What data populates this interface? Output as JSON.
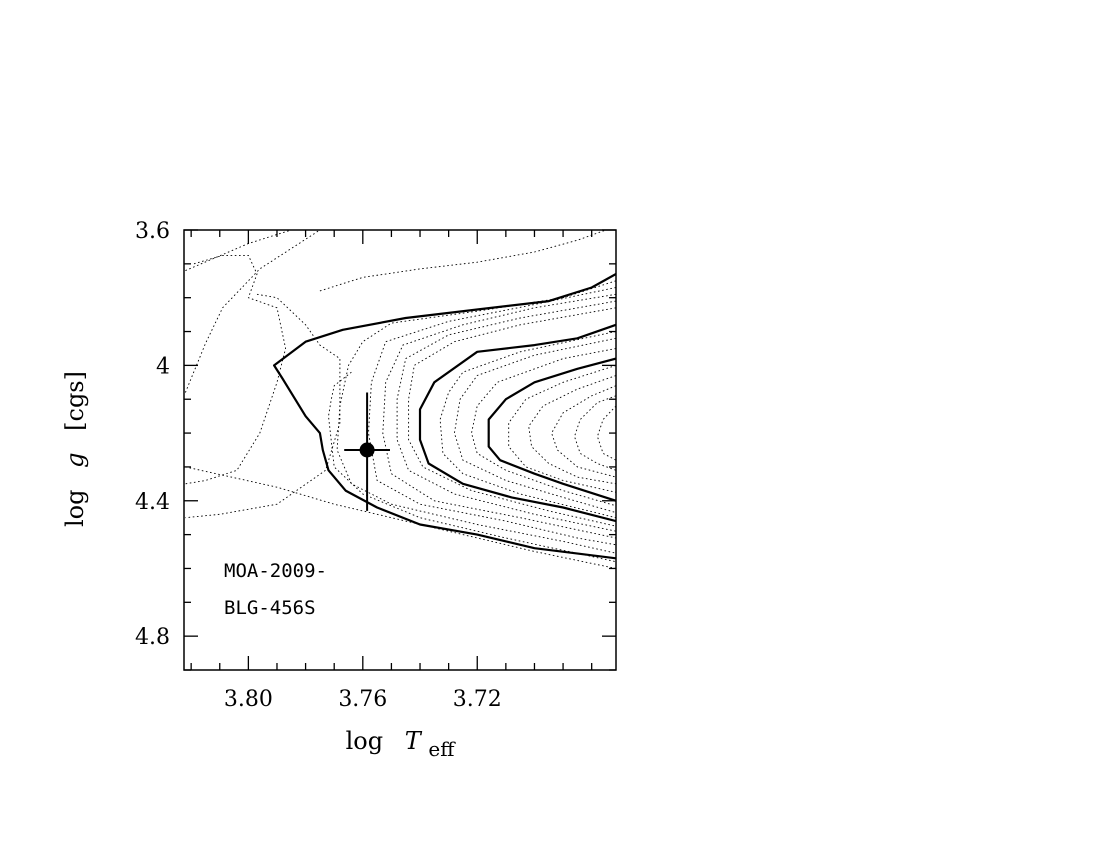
{
  "chart_data": {
    "type": "line",
    "title": "",
    "xlabel": {
      "prefix": "log",
      "symbol": "T",
      "subscript": "eff"
    },
    "ylabel": {
      "prefix": "log",
      "symbol": "g",
      "suffix": "[cgs]"
    },
    "xlim": [
      3.6715,
      3.8225
    ],
    "ylim": [
      4.9,
      3.6
    ],
    "x_reversed": true,
    "y_reversed": true,
    "x_major_ticks": [
      3.8,
      3.76,
      3.72
    ],
    "x_minor_step": 0.01,
    "x_tick_labels": [
      "3.80",
      "3.76",
      "3.72"
    ],
    "y_major_ticks": [
      3.6,
      4.0,
      4.4,
      4.8
    ],
    "y_minor_step": 0.1,
    "y_tick_labels": [
      "3.6",
      "4",
      "4.4",
      "4.8"
    ],
    "grid": false,
    "annotations": [
      "MOA-2009-",
      "BLG-456S"
    ],
    "data_point": {
      "label": "MOA-2009-BLG-456S",
      "x": 3.7585,
      "y": 4.25,
      "x_err": [
        3.7665,
        3.7505
      ],
      "y_err": [
        4.08,
        4.43
      ]
    },
    "series": [
      {
        "style": "dotted",
        "points": [
          [
            3.822,
            4.08
          ],
          [
            3.815,
            3.935
          ],
          [
            3.809,
            3.83
          ],
          [
            3.796,
            3.715
          ],
          [
            3.775,
            3.6
          ]
        ]
      },
      {
        "style": "dotted",
        "points": [
          [
            3.819,
            3.7
          ],
          [
            3.809,
            3.675
          ],
          [
            3.8,
            3.675
          ],
          [
            3.797,
            3.73
          ],
          [
            3.8,
            3.8
          ],
          [
            3.79,
            3.83
          ],
          [
            3.787,
            3.95
          ],
          [
            3.79,
            4.05
          ],
          [
            3.796,
            4.2
          ],
          [
            3.804,
            4.31
          ],
          [
            3.815,
            4.34
          ],
          [
            3.822,
            4.35
          ]
        ]
      },
      {
        "style": "dotted",
        "points": [
          [
            3.797,
            3.79
          ],
          [
            3.79,
            3.8
          ],
          [
            3.78,
            3.88
          ],
          [
            3.775,
            3.94
          ],
          [
            3.768,
            3.98
          ],
          [
            3.768,
            4.17
          ],
          [
            3.773,
            4.31
          ],
          [
            3.79,
            4.41
          ],
          [
            3.81,
            4.44
          ],
          [
            3.822,
            4.45
          ]
        ]
      },
      {
        "style": "dotted",
        "points": [
          [
            3.822,
            4.3
          ],
          [
            3.79,
            4.36
          ],
          [
            3.77,
            4.41
          ],
          [
            3.755,
            4.44
          ],
          [
            3.73,
            4.49
          ],
          [
            3.7,
            4.55
          ],
          [
            3.6715,
            4.6
          ]
        ]
      },
      {
        "style": "dotted",
        "points": [
          [
            3.822,
            3.72
          ],
          [
            3.8,
            3.64
          ],
          [
            3.785,
            3.6
          ]
        ]
      },
      {
        "style": "dotted",
        "points": [
          [
            3.775,
            3.78
          ],
          [
            3.76,
            3.74
          ],
          [
            3.74,
            3.715
          ],
          [
            3.72,
            3.695
          ],
          [
            3.7,
            3.665
          ],
          [
            3.685,
            3.63
          ],
          [
            3.675,
            3.6
          ]
        ]
      },
      {
        "style": "dotted",
        "points": [
          [
            3.764,
            4.02
          ],
          [
            3.77,
            4.06
          ],
          [
            3.771,
            4.1
          ],
          [
            3.772,
            4.15
          ],
          [
            3.77,
            4.3
          ],
          [
            3.76,
            4.38
          ],
          [
            3.74,
            4.45
          ],
          [
            3.71,
            4.51
          ],
          [
            3.6715,
            4.58
          ]
        ]
      },
      {
        "style": "solid",
        "points": [
          [
            3.6715,
            3.73
          ],
          [
            3.68,
            3.77
          ],
          [
            3.695,
            3.81
          ],
          [
            3.72,
            3.835
          ],
          [
            3.745,
            3.86
          ],
          [
            3.767,
            3.895
          ],
          [
            3.78,
            3.93
          ],
          [
            3.791,
            4.0
          ],
          [
            3.788,
            4.04
          ],
          [
            3.78,
            4.15
          ],
          [
            3.775,
            4.2
          ],
          [
            3.774,
            4.25
          ],
          [
            3.772,
            4.31
          ],
          [
            3.766,
            4.37
          ],
          [
            3.755,
            4.42
          ],
          [
            3.74,
            4.47
          ],
          [
            3.72,
            4.5
          ],
          [
            3.7,
            4.54
          ],
          [
            3.6715,
            4.57
          ]
        ]
      },
      {
        "style": "dotted",
        "points": [
          [
            3.6715,
            3.75
          ],
          [
            3.69,
            3.8
          ],
          [
            3.72,
            3.84
          ],
          [
            3.75,
            3.875
          ],
          [
            3.76,
            3.93
          ],
          [
            3.765,
            4.0
          ],
          [
            3.768,
            4.12
          ],
          [
            3.769,
            4.25
          ],
          [
            3.764,
            4.35
          ],
          [
            3.75,
            4.41
          ],
          [
            3.72,
            4.47
          ],
          [
            3.69,
            4.52
          ],
          [
            3.6715,
            4.555
          ]
        ]
      },
      {
        "style": "dotted",
        "points": [
          [
            3.6715,
            3.77
          ],
          [
            3.7,
            3.82
          ],
          [
            3.73,
            3.87
          ],
          [
            3.752,
            3.93
          ],
          [
            3.757,
            4.05
          ],
          [
            3.758,
            4.2
          ],
          [
            3.755,
            4.34
          ],
          [
            3.74,
            4.41
          ],
          [
            3.71,
            4.46
          ],
          [
            3.685,
            4.51
          ],
          [
            3.6715,
            4.53
          ]
        ]
      },
      {
        "style": "dotted",
        "points": [
          [
            3.6715,
            3.79
          ],
          [
            3.7,
            3.83
          ],
          [
            3.725,
            3.88
          ],
          [
            3.746,
            3.94
          ],
          [
            3.752,
            4.05
          ],
          [
            3.753,
            4.2
          ],
          [
            3.75,
            4.32
          ],
          [
            3.735,
            4.4
          ],
          [
            3.705,
            4.45
          ],
          [
            3.6715,
            4.51
          ]
        ]
      },
      {
        "style": "dotted",
        "points": [
          [
            3.6715,
            3.81
          ],
          [
            3.705,
            3.86
          ],
          [
            3.73,
            3.91
          ],
          [
            3.745,
            3.98
          ],
          [
            3.748,
            4.1
          ],
          [
            3.748,
            4.22
          ],
          [
            3.744,
            4.31
          ],
          [
            3.728,
            4.38
          ],
          [
            3.7,
            4.44
          ],
          [
            3.6715,
            4.49
          ]
        ]
      },
      {
        "style": "dotted",
        "points": [
          [
            3.6715,
            3.83
          ],
          [
            3.705,
            3.88
          ],
          [
            3.728,
            3.93
          ],
          [
            3.742,
            4.0
          ],
          [
            3.744,
            4.1
          ],
          [
            3.744,
            4.22
          ],
          [
            3.739,
            4.3
          ],
          [
            3.722,
            4.37
          ],
          [
            3.695,
            4.43
          ],
          [
            3.6715,
            4.475
          ]
        ]
      },
      {
        "style": "solid",
        "points": [
          [
            3.6715,
            3.88
          ],
          [
            3.685,
            3.92
          ],
          [
            3.7,
            3.94
          ],
          [
            3.72,
            3.96
          ],
          [
            3.735,
            4.05
          ],
          [
            3.74,
            4.13
          ],
          [
            3.74,
            4.22
          ],
          [
            3.737,
            4.29
          ],
          [
            3.725,
            4.35
          ],
          [
            3.708,
            4.39
          ],
          [
            3.69,
            4.42
          ],
          [
            3.6715,
            4.46
          ]
        ]
      },
      {
        "style": "dotted",
        "points": [
          [
            3.6715,
            3.9
          ],
          [
            3.705,
            3.96
          ],
          [
            3.725,
            4.02
          ],
          [
            3.73,
            4.08
          ],
          [
            3.733,
            4.16
          ],
          [
            3.732,
            4.26
          ],
          [
            3.725,
            4.32
          ],
          [
            3.705,
            4.38
          ],
          [
            3.6715,
            4.45
          ]
        ]
      },
      {
        "style": "dotted",
        "points": [
          [
            3.6715,
            3.92
          ],
          [
            3.7,
            3.97
          ],
          [
            3.72,
            4.03
          ],
          [
            3.726,
            4.1
          ],
          [
            3.728,
            4.2
          ],
          [
            3.725,
            4.28
          ],
          [
            3.71,
            4.34
          ],
          [
            3.69,
            4.39
          ],
          [
            3.6715,
            4.435
          ]
        ]
      },
      {
        "style": "dotted",
        "points": [
          [
            3.6715,
            3.95
          ],
          [
            3.69,
            3.98
          ],
          [
            3.713,
            4.05
          ],
          [
            3.72,
            4.12
          ],
          [
            3.722,
            4.2
          ],
          [
            3.72,
            4.26
          ],
          [
            3.71,
            4.31
          ],
          [
            3.69,
            4.37
          ],
          [
            3.6715,
            4.415
          ]
        ]
      },
      {
        "style": "solid",
        "points": [
          [
            3.6715,
            3.98
          ],
          [
            3.685,
            4.01
          ],
          [
            3.7,
            4.05
          ],
          [
            3.71,
            4.1
          ],
          [
            3.716,
            4.16
          ],
          [
            3.716,
            4.24
          ],
          [
            3.712,
            4.28
          ],
          [
            3.7,
            4.32
          ],
          [
            3.69,
            4.35
          ],
          [
            3.6715,
            4.4
          ]
        ]
      },
      {
        "style": "dotted",
        "points": [
          [
            3.6715,
            4.0
          ],
          [
            3.69,
            4.05
          ],
          [
            3.703,
            4.1
          ],
          [
            3.709,
            4.17
          ],
          [
            3.709,
            4.24
          ],
          [
            3.703,
            4.3
          ],
          [
            3.69,
            4.34
          ],
          [
            3.6715,
            4.375
          ]
        ]
      },
      {
        "style": "dotted",
        "points": [
          [
            3.6715,
            4.03
          ],
          [
            3.685,
            4.07
          ],
          [
            3.697,
            4.12
          ],
          [
            3.702,
            4.18
          ],
          [
            3.701,
            4.24
          ],
          [
            3.695,
            4.29
          ],
          [
            3.685,
            4.33
          ],
          [
            3.6715,
            4.35
          ]
        ]
      },
      {
        "style": "dotted",
        "points": [
          [
            3.6715,
            4.06
          ],
          [
            3.68,
            4.09
          ],
          [
            3.69,
            4.14
          ],
          [
            3.694,
            4.2
          ],
          [
            3.692,
            4.25
          ],
          [
            3.685,
            4.3
          ],
          [
            3.6715,
            4.33
          ]
        ]
      },
      {
        "style": "dotted",
        "points": [
          [
            3.6715,
            4.09
          ],
          [
            3.678,
            4.11
          ],
          [
            3.684,
            4.16
          ],
          [
            3.686,
            4.21
          ],
          [
            3.684,
            4.26
          ],
          [
            3.678,
            4.29
          ],
          [
            3.6715,
            4.31
          ]
        ]
      },
      {
        "style": "dotted",
        "points": [
          [
            3.6715,
            4.12
          ],
          [
            3.676,
            4.16
          ],
          [
            3.678,
            4.21
          ],
          [
            3.676,
            4.26
          ],
          [
            3.6715,
            4.28
          ]
        ]
      }
    ]
  }
}
